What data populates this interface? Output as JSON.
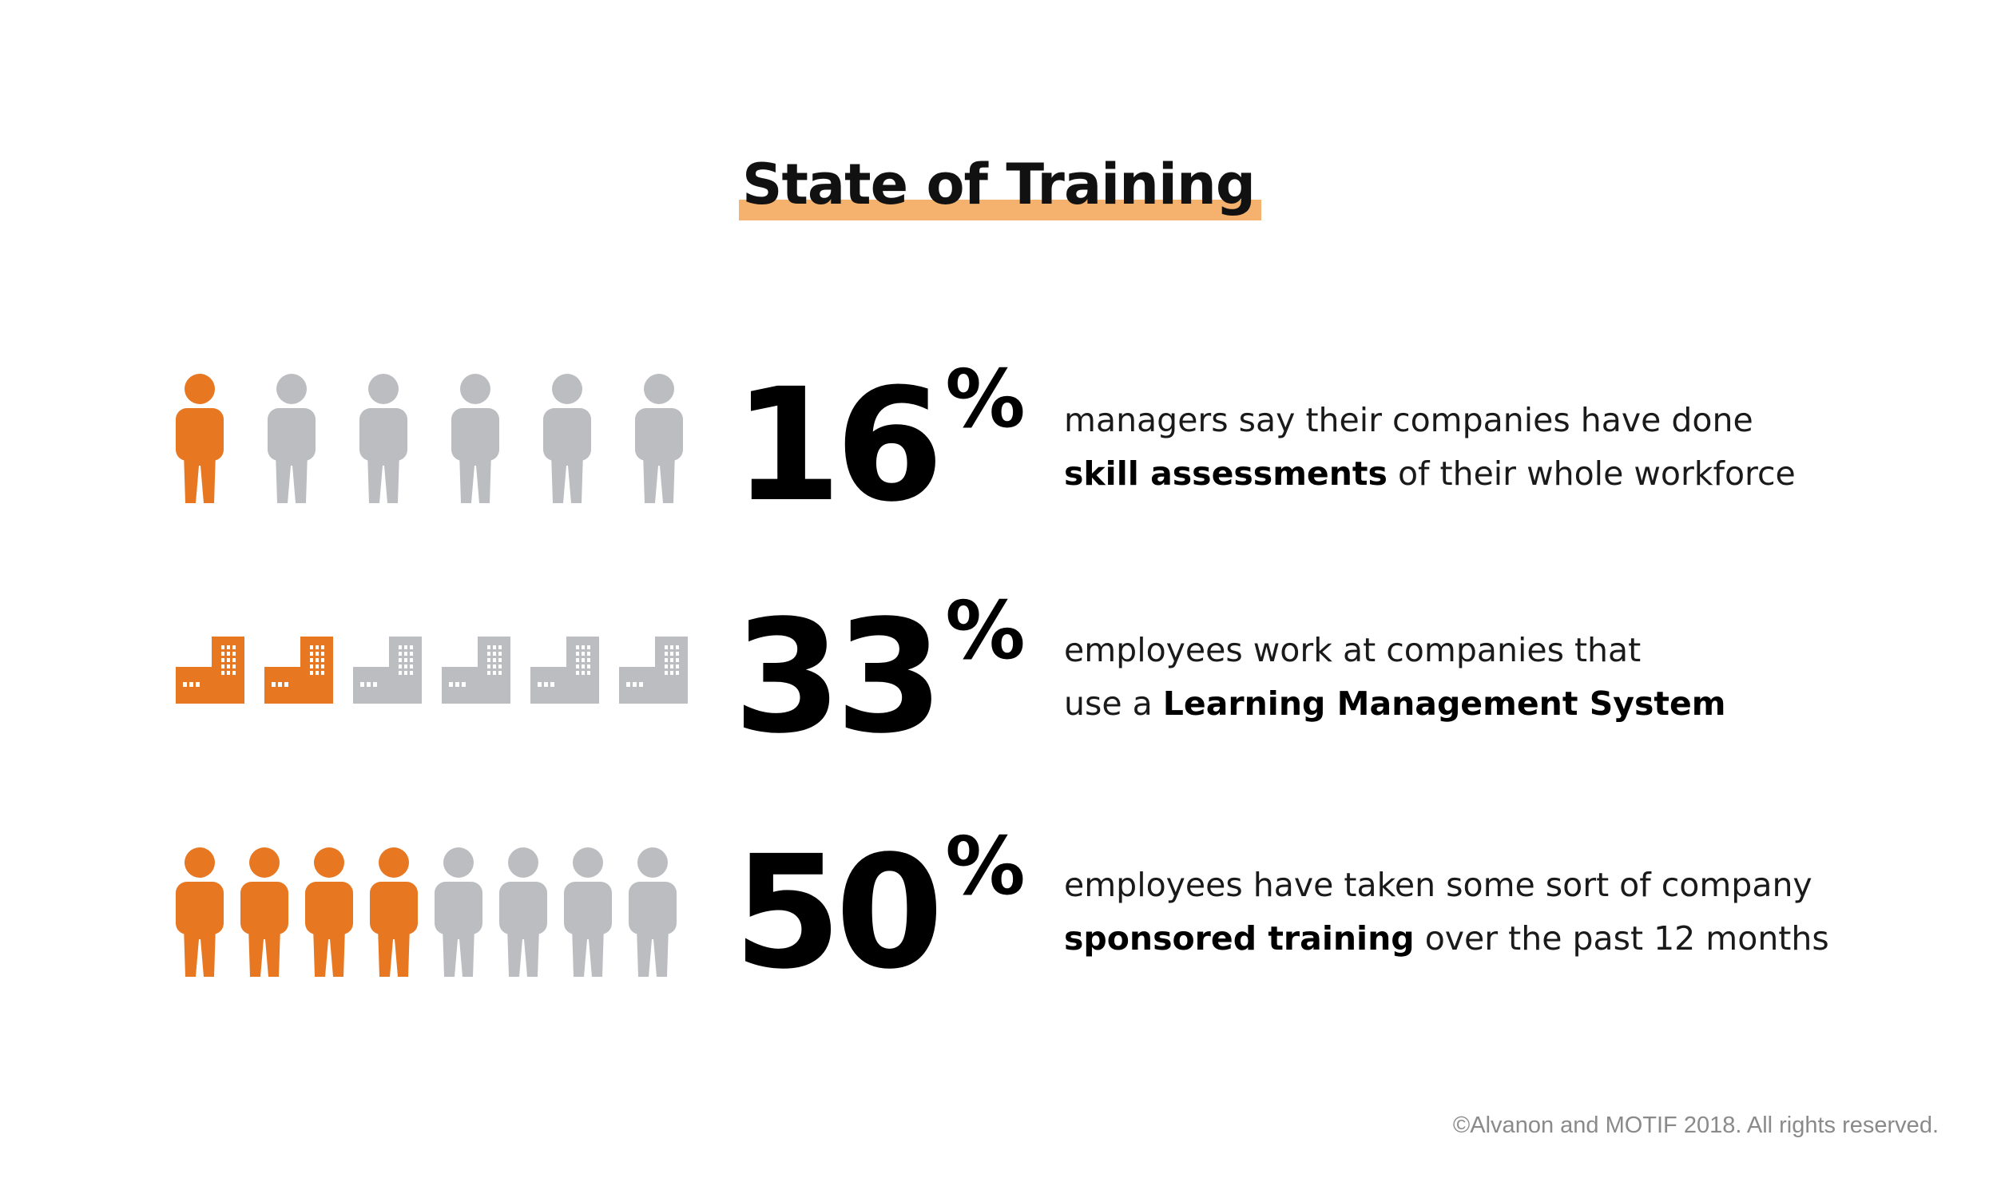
{
  "title": "State of Training",
  "colors": {
    "highlight": "#f4b26e",
    "active": "#e87722",
    "inactive": "#bcbdc0",
    "text": "#111111"
  },
  "stats": [
    {
      "value": "16",
      "sign": "%",
      "icon": "person-icon",
      "icon_total": 6,
      "icon_highlighted": 1,
      "line1": "managers say their companies have done",
      "line2_bold": "skill assessments",
      "line2_rest": " of their whole workforce"
    },
    {
      "value": "33",
      "sign": "%",
      "icon": "building-icon",
      "icon_total": 6,
      "icon_highlighted": 2,
      "line1": "employees work at companies that",
      "line2_pre": "use a ",
      "line2_bold": "Learning Management System"
    },
    {
      "value": "50",
      "sign": "%",
      "icon": "person-icon",
      "icon_total": 8,
      "icon_highlighted": 4,
      "line1": "employees have taken some sort of company",
      "line2_bold": "sponsored training",
      "line2_rest": " over the past 12 months"
    }
  ],
  "footer": "©Alvanon and MOTIF 2018. All rights reserved."
}
